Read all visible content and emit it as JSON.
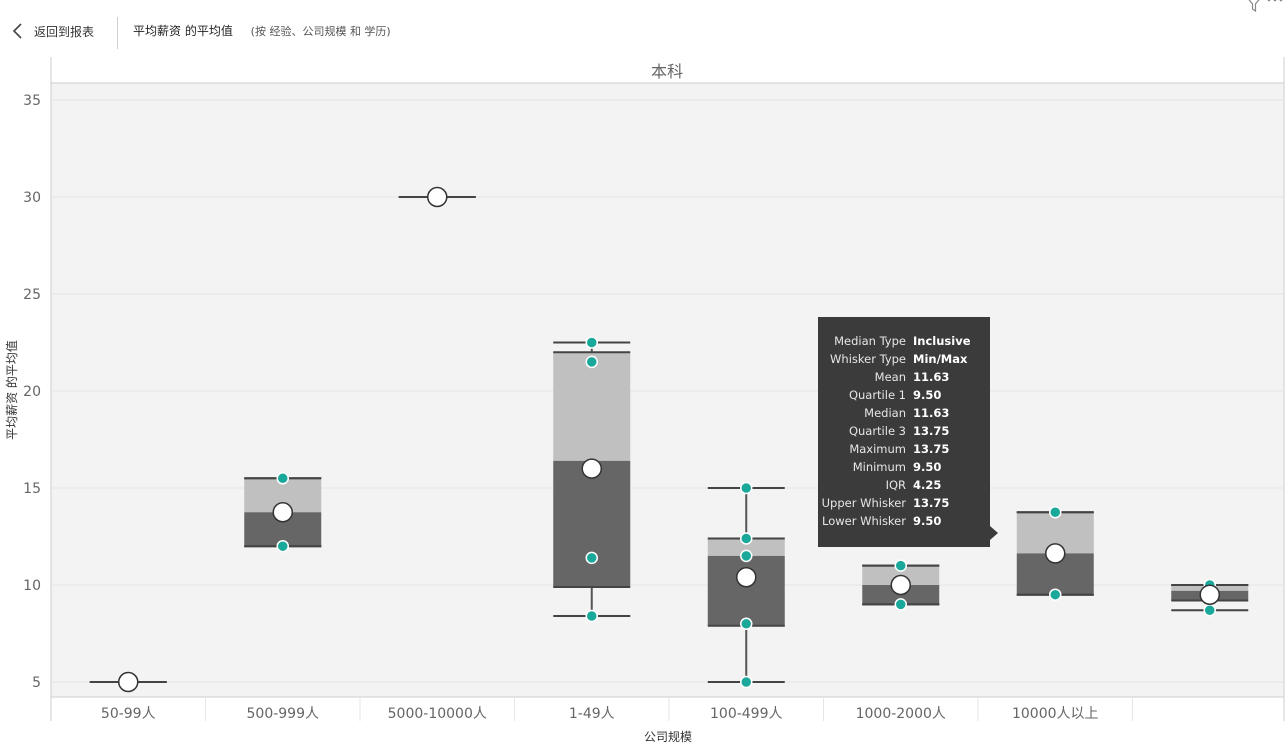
{
  "header": {
    "back_label": "返回到报表",
    "title": "平均薪资 的平均值",
    "subtitle": "(按 经验、公司规模 和 学历)"
  },
  "icons": {
    "back": "chevron-left-icon",
    "filter": "filter-icon",
    "more": "more-options-icon"
  },
  "colors": {
    "box_lower": "#666666",
    "box_upper": "#c0c0c0",
    "point": "#1aa89a",
    "mean": "#ffffff",
    "panel": "#f3f3f3"
  },
  "tooltip": {
    "rows": [
      {
        "label": "Median Type",
        "value": "Inclusive"
      },
      {
        "label": "Whisker Type",
        "value": "Min/Max"
      },
      {
        "label": "Mean",
        "value": "11.63"
      },
      {
        "label": "Quartile 1",
        "value": "9.50"
      },
      {
        "label": "Median",
        "value": "11.63"
      },
      {
        "label": "Quartile 3",
        "value": "13.75"
      },
      {
        "label": "Maximum",
        "value": "13.75"
      },
      {
        "label": "Minimum",
        "value": "9.50"
      },
      {
        "label": "IQR",
        "value": "4.25"
      },
      {
        "label": "Upper Whisker",
        "value": "13.75"
      },
      {
        "label": "Lower Whisker",
        "value": "9.50"
      }
    ]
  },
  "chart_data": {
    "type": "box",
    "facet_title": "本科",
    "xlabel": "公司规模",
    "ylabel": "平均薪资 的平均值",
    "ylim": [
      4,
      36
    ],
    "yticks": [
      5,
      10,
      15,
      20,
      25,
      30,
      35
    ],
    "grid": true,
    "categories": [
      "50-99人",
      "500-999人",
      "5000-10000人",
      "1-49人",
      "100-499人",
      "1000-2000人",
      "10000人以上",
      ""
    ],
    "boxes": [
      {
        "category": "50-99人",
        "min": 5,
        "q1": 5,
        "median": 5,
        "q3": 5,
        "max": 5,
        "mean": 5,
        "points": []
      },
      {
        "category": "500-999人",
        "min": 12,
        "q1": 12,
        "median": 13.75,
        "q3": 15.5,
        "max": 15.5,
        "mean": 13.75,
        "points": [
          15.5,
          12
        ]
      },
      {
        "category": "5000-10000人",
        "min": 30,
        "q1": 30,
        "median": 30,
        "q3": 30,
        "max": 30,
        "mean": 30,
        "points": []
      },
      {
        "category": "1-49人",
        "min": 8.4,
        "q1": 9.9,
        "median": 16.4,
        "q3": 22,
        "max": 22.5,
        "mean": 16,
        "points": [
          22.5,
          21.5,
          11.4,
          8.4
        ]
      },
      {
        "category": "100-499人",
        "min": 5,
        "q1": 7.9,
        "median": 11.5,
        "q3": 12.4,
        "max": 15,
        "mean": 10.4,
        "points": [
          15,
          12.4,
          11.5,
          8,
          5
        ]
      },
      {
        "category": "1000-2000人",
        "min": 9,
        "q1": 9,
        "median": 10,
        "q3": 11,
        "max": 11,
        "mean": 10,
        "points": [
          11,
          9
        ]
      },
      {
        "category": "10000人以上",
        "min": 9.5,
        "q1": 9.5,
        "median": 11.63,
        "q3": 13.75,
        "max": 13.75,
        "mean": 11.63,
        "points": [
          13.75,
          9.5
        ]
      },
      {
        "category": "",
        "min": 8.7,
        "q1": 9.2,
        "median": 9.7,
        "q3": 10,
        "max": 10,
        "mean": 9.5,
        "points": [
          10,
          8.7
        ]
      }
    ]
  }
}
